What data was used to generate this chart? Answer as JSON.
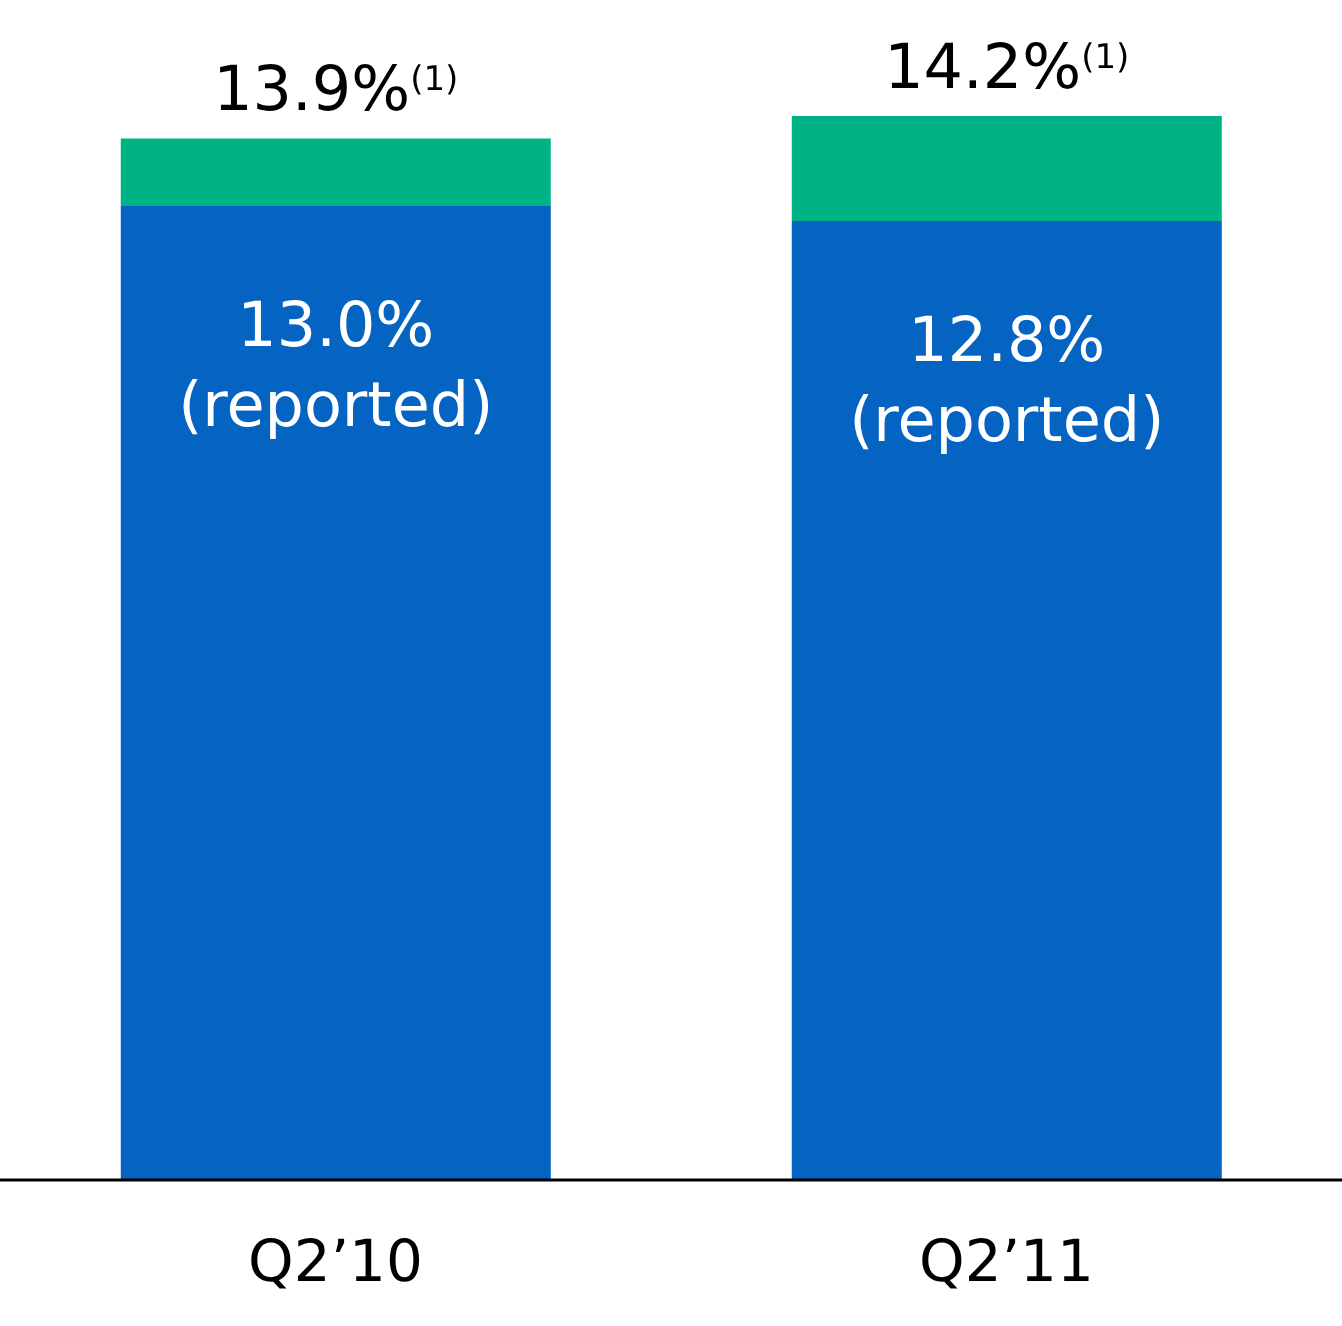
{
  "chart_data": {
    "type": "bar",
    "stacked": true,
    "categories": [
      "Q2’10",
      "Q2’11"
    ],
    "series": [
      {
        "color": "#0563c1",
        "values": [
          13.0,
          12.8
        ],
        "value_labels": [
          "13.0%\n(reported)",
          "12.8%\n(reported)"
        ]
      },
      {
        "color": "#00b386",
        "values": [
          0.9,
          1.4
        ]
      }
    ],
    "totals": [
      "13.9%$^{(1)}$",
      "14.2%$^{(1)}$"
    ],
    "legend": false,
    "grid": false
  }
}
